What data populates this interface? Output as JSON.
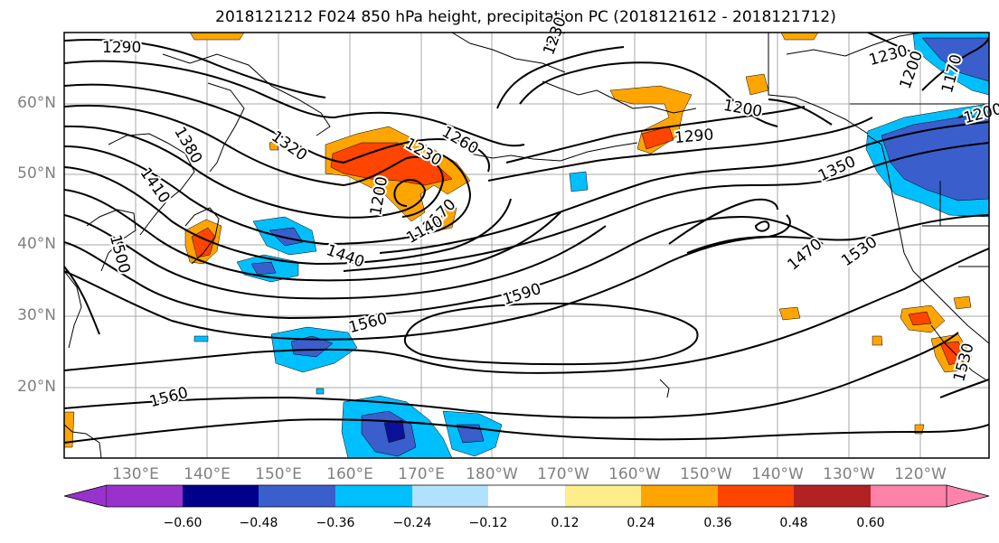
{
  "title": "2018121212 F024 850 hPa height, precipitation PC (2018121612 - 2018121712)",
  "lat_labels": [
    "60°N",
    "50°N",
    "40°N",
    "30°N",
    "20°N"
  ],
  "lon_labels": [
    "130°E",
    "140°E",
    "150°E",
    "160°E",
    "170°E",
    "180°W",
    "170°W",
    "160°W",
    "150°W",
    "140°W",
    "130°W",
    "120°W"
  ],
  "contour_labels": [
    "1290",
    "1380",
    "1410",
    "1500",
    "1320",
    "1230",
    "1260",
    "1200",
    "1170",
    "1140",
    "1440",
    "1590",
    "1560",
    "1560",
    "1290",
    "1200",
    "1350",
    "1470",
    "1530",
    "1230",
    "1200",
    "1170",
    "1530",
    "1230",
    "1200"
  ],
  "colorbar": {
    "ticks": [
      "−0.60",
      "−0.48",
      "−0.36",
      "−0.24",
      "−0.12",
      "0.12",
      "0.24",
      "0.36",
      "0.48",
      "0.60"
    ],
    "colors": [
      "#9932cc",
      "#00008b",
      "#3a5fcd",
      "#00bfff",
      "#b0e2ff",
      "#ffffff",
      "#ffec8b",
      "#ffa500",
      "#ff4500",
      "#b22222",
      "#ff82ab"
    ]
  }
}
